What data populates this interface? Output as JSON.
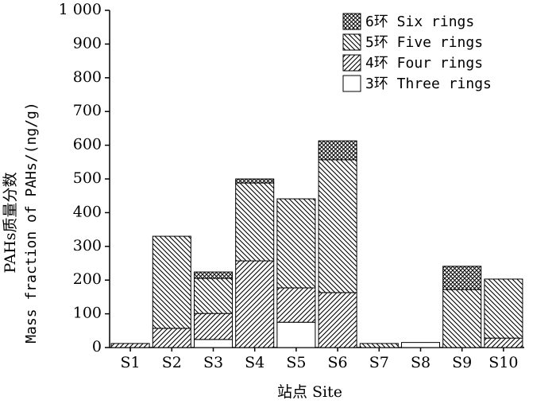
{
  "chart_data": {
    "type": "stacked_bar",
    "y_label_lines": [
      "PAHs质量分数",
      "Mass fraction of PAHs/(ng/g)"
    ],
    "x_label": "站点 Site",
    "categories": [
      "S1",
      "S2",
      "S3",
      "S4",
      "S5",
      "S6",
      "S7",
      "S8",
      "S9",
      "S10"
    ],
    "series": [
      {
        "name": "6环 Six rings",
        "color": "#000000",
        "pattern": "crosshatch",
        "values": [
          0,
          0,
          19,
          12,
          0,
          56,
          0,
          0,
          69,
          0
        ]
      },
      {
        "name": "5环 Five rings",
        "color": "#000000",
        "pattern": "backslash",
        "values": [
          0,
          273,
          104,
          231,
          264,
          394,
          12,
          0,
          172,
          175
        ]
      },
      {
        "name": "4环 Four rings",
        "color": "#000000",
        "pattern": "slash",
        "values": [
          12,
          57,
          77,
          257,
          102,
          163,
          0,
          0,
          0,
          28
        ]
      },
      {
        "name": "3环 Three rings",
        "color": "#000000",
        "pattern": "none",
        "values": [
          0,
          0,
          24,
          0,
          75,
          0,
          0,
          15,
          0,
          0
        ]
      }
    ],
    "ylim": [
      0,
      1000
    ],
    "yticks": [
      0,
      100,
      200,
      300,
      400,
      500,
      600,
      700,
      800,
      900,
      {
        "value": 1000,
        "label": "1 000"
      }
    ],
    "legend": "upper right"
  }
}
